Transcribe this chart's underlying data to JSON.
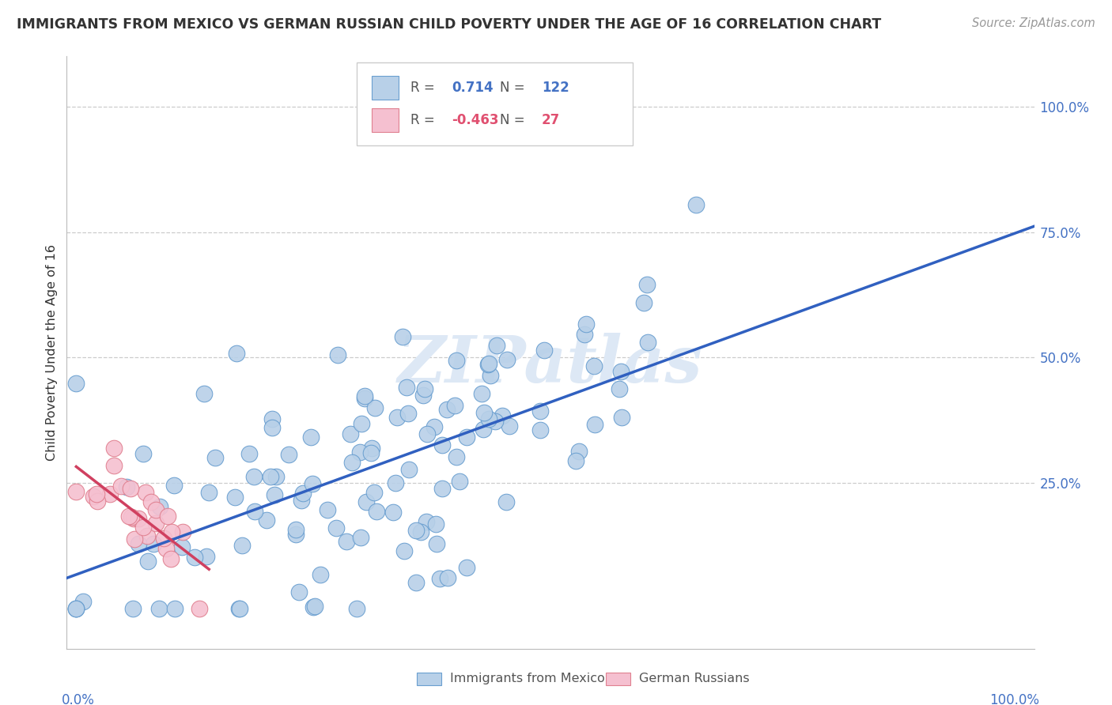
{
  "title": "IMMIGRANTS FROM MEXICO VS GERMAN RUSSIAN CHILD POVERTY UNDER THE AGE OF 16 CORRELATION CHART",
  "source": "Source: ZipAtlas.com",
  "ylabel": "Child Poverty Under the Age of 16",
  "legend_blue_r_val": "0.714",
  "legend_blue_n_val": "122",
  "legend_pink_r_val": "-0.463",
  "legend_pink_n_val": "27",
  "legend_blue_label": "Immigrants from Mexico",
  "legend_pink_label": "German Russians",
  "blue_color": "#b8d0e8",
  "blue_edge": "#6a9fd0",
  "blue_line": "#3060c0",
  "pink_color": "#f5c0d0",
  "pink_edge": "#e08090",
  "pink_line": "#d04060",
  "watermark": "ZIPatlas",
  "blue_r": 0.714,
  "blue_n": 122,
  "pink_r": -0.463,
  "pink_n": 27,
  "seed": 42
}
